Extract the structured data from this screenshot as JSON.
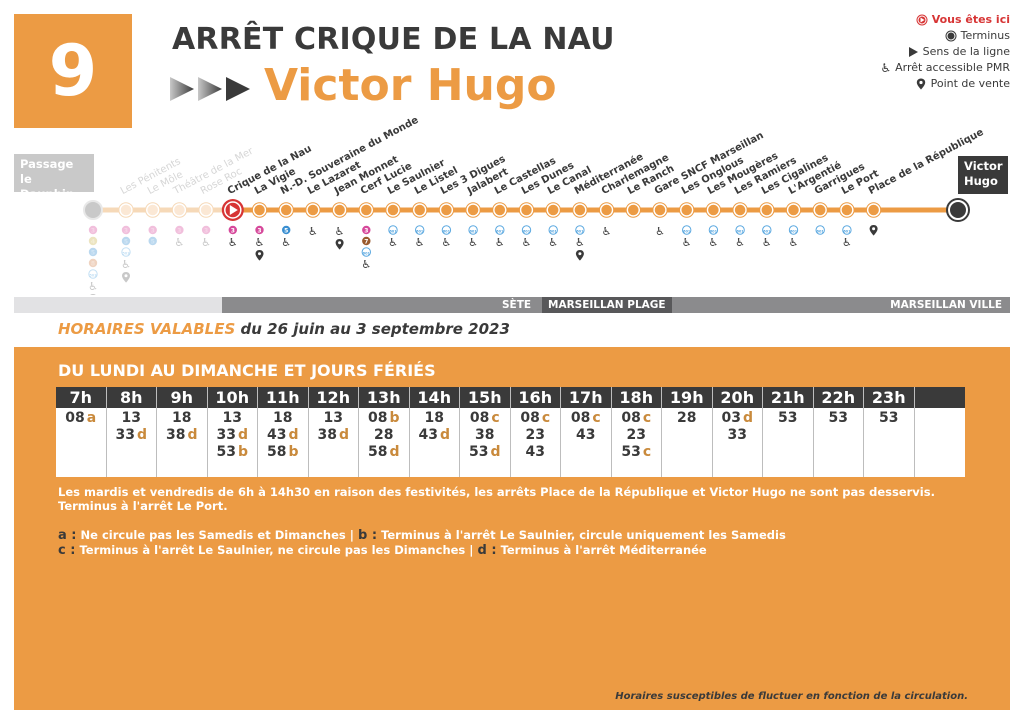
{
  "header": {
    "line_number": "9",
    "stop_title": "ARRÊT CRIQUE DE LA NAU",
    "direction": "Victor Hugo"
  },
  "legend": {
    "items": [
      {
        "icon": "you-are-here-icon",
        "label": "Vous êtes ici"
      },
      {
        "icon": "terminus-icon",
        "label": "Terminus"
      },
      {
        "icon": "direction-arrow-icon",
        "label": "Sens de la ligne"
      },
      {
        "icon": "wheelchair-icon",
        "label": "Arrêt accessible PMR"
      },
      {
        "icon": "map-pin-icon",
        "label": "Point de vente"
      }
    ]
  },
  "route": {
    "start_terminal": "Passage le Dauphin",
    "end_terminal": "Victor Hugo",
    "colors": {
      "line": "#ec9b44",
      "past_line": "#f6d9b8",
      "current": "#d73535",
      "terminus": "#3a3a3a"
    },
    "stops": [
      {
        "name": "Les Pénitents",
        "past": true,
        "connections": [
          "3",
          "5",
          "503"
        ],
        "pmr": true,
        "sale": true
      },
      {
        "name": "Le Môle",
        "past": true,
        "connections": [
          "3",
          "5"
        ],
        "pmr": false,
        "sale": false
      },
      {
        "name": "Théâtre de la Mer",
        "past": true,
        "connections": [
          "3"
        ],
        "pmr": true,
        "sale": false
      },
      {
        "name": "Rose Roc",
        "past": true,
        "connections": [
          "3"
        ],
        "pmr": true,
        "sale": false
      },
      {
        "name": "Crique de la Nau",
        "current": true,
        "connections": [
          "3"
        ],
        "pmr": true,
        "sale": false
      },
      {
        "name": "La Vigie",
        "connections": [
          "3"
        ],
        "pmr": true,
        "sale": true
      },
      {
        "name": "N.-D. Souveraine du Monde",
        "connections": [
          "5"
        ],
        "pmr": true,
        "sale": false
      },
      {
        "name": "Le Lazaret",
        "connections": [],
        "pmr": true,
        "sale": false
      },
      {
        "name": "Jean Monnet",
        "connections": [],
        "pmr": true,
        "sale": true
      },
      {
        "name": "Cerf Lucie",
        "connections": [
          "3",
          "7",
          "601"
        ],
        "pmr": true,
        "sale": false
      },
      {
        "name": "Le Saulnier",
        "connections": [
          "601"
        ],
        "pmr": true,
        "sale": false
      },
      {
        "name": "Le Listel",
        "connections": [
          "601"
        ],
        "pmr": true,
        "sale": false
      },
      {
        "name": "Les 3 Digues",
        "connections": [
          "601"
        ],
        "pmr": true,
        "sale": false
      },
      {
        "name": "Jalabert",
        "connections": [
          "601"
        ],
        "pmr": true,
        "sale": false
      },
      {
        "name": "Le Castellas",
        "connections": [
          "601"
        ],
        "pmr": true,
        "sale": false
      },
      {
        "name": "Les Dunes",
        "connections": [
          "601"
        ],
        "pmr": true,
        "sale": false
      },
      {
        "name": "Le Canal",
        "connections": [
          "601"
        ],
        "pmr": true,
        "sale": false
      },
      {
        "name": "Méditerranée",
        "connections": [
          "601"
        ],
        "pmr": true,
        "sale": true
      },
      {
        "name": "Charlemagne",
        "connections": [],
        "pmr": true,
        "sale": false
      },
      {
        "name": "Le Ranch",
        "connections": [],
        "pmr": false,
        "sale": false
      },
      {
        "name": "Gare SNCF Marseillan",
        "connections": [],
        "pmr": true,
        "sale": false
      },
      {
        "name": "Les Onglous",
        "connections": [
          "601"
        ],
        "pmr": true,
        "sale": false
      },
      {
        "name": "Les Mougères",
        "connections": [
          "601"
        ],
        "pmr": true,
        "sale": false
      },
      {
        "name": "Les Ramiers",
        "connections": [
          "601"
        ],
        "pmr": true,
        "sale": false
      },
      {
        "name": "Les Cigalines",
        "connections": [
          "601"
        ],
        "pmr": true,
        "sale": false
      },
      {
        "name": "L'Argentié",
        "connections": [
          "601"
        ],
        "pmr": true,
        "sale": false
      },
      {
        "name": "Garrigues",
        "connections": [
          "601"
        ],
        "pmr": false,
        "sale": false
      },
      {
        "name": "Le Port",
        "connections": [
          "601"
        ],
        "pmr": true,
        "sale": false
      },
      {
        "name": "Place de la République",
        "connections": [],
        "pmr": false,
        "sale": true
      }
    ],
    "start_connections": [
      "3",
      "4",
      "5",
      "8",
      "503"
    ]
  },
  "zones": {
    "sete": "SÈTE",
    "plage": "MARSEILLAN PLAGE",
    "ville": "MARSEILLAN VILLE"
  },
  "validity": {
    "highlight": "HORAIRES VALABLES",
    "period": "du 26 juin au 3 septembre 2023"
  },
  "timetable": {
    "title": "DU LUNDI AU DIMANCHE ET JOURS FÉRIÉS",
    "columns": [
      {
        "hour": "7h",
        "departures": [
          {
            "min": "08",
            "mark": "a"
          }
        ]
      },
      {
        "hour": "8h",
        "departures": [
          {
            "min": "13",
            "mark": ""
          },
          {
            "min": "33",
            "mark": "d"
          }
        ]
      },
      {
        "hour": "9h",
        "departures": [
          {
            "min": "18",
            "mark": ""
          },
          {
            "min": "38",
            "mark": "d"
          }
        ]
      },
      {
        "hour": "10h",
        "departures": [
          {
            "min": "13",
            "mark": ""
          },
          {
            "min": "33",
            "mark": "d"
          },
          {
            "min": "53",
            "mark": "b"
          }
        ]
      },
      {
        "hour": "11h",
        "departures": [
          {
            "min": "18",
            "mark": ""
          },
          {
            "min": "43",
            "mark": "d"
          },
          {
            "min": "58",
            "mark": "b"
          }
        ]
      },
      {
        "hour": "12h",
        "departures": [
          {
            "min": "13",
            "mark": ""
          },
          {
            "min": "38",
            "mark": "d"
          }
        ]
      },
      {
        "hour": "13h",
        "departures": [
          {
            "min": "08",
            "mark": "b"
          },
          {
            "min": "28",
            "mark": ""
          },
          {
            "min": "58",
            "mark": "d"
          }
        ]
      },
      {
        "hour": "14h",
        "departures": [
          {
            "min": "18",
            "mark": ""
          },
          {
            "min": "43",
            "mark": "d"
          }
        ]
      },
      {
        "hour": "15h",
        "departures": [
          {
            "min": "08",
            "mark": "c"
          },
          {
            "min": "38",
            "mark": ""
          },
          {
            "min": "53",
            "mark": "d"
          }
        ]
      },
      {
        "hour": "16h",
        "departures": [
          {
            "min": "08",
            "mark": "c"
          },
          {
            "min": "23",
            "mark": ""
          },
          {
            "min": "43",
            "mark": ""
          }
        ]
      },
      {
        "hour": "17h",
        "departures": [
          {
            "min": "08",
            "mark": "c"
          },
          {
            "min": "43",
            "mark": ""
          }
        ]
      },
      {
        "hour": "18h",
        "departures": [
          {
            "min": "08",
            "mark": "c"
          },
          {
            "min": "23",
            "mark": ""
          },
          {
            "min": "53",
            "mark": "c"
          }
        ]
      },
      {
        "hour": "19h",
        "departures": [
          {
            "min": "28",
            "mark": ""
          }
        ]
      },
      {
        "hour": "20h",
        "departures": [
          {
            "min": "03",
            "mark": "d"
          },
          {
            "min": "33",
            "mark": ""
          }
        ]
      },
      {
        "hour": "21h",
        "departures": [
          {
            "min": "53",
            "mark": ""
          }
        ]
      },
      {
        "hour": "22h",
        "departures": [
          {
            "min": "53",
            "mark": ""
          }
        ]
      },
      {
        "hour": "23h",
        "departures": [
          {
            "min": "53",
            "mark": ""
          }
        ]
      },
      {
        "hour": "",
        "departures": []
      }
    ],
    "note": "Les mardis et vendredis de 6h à 14h30 en raison des festivités, les arrêts Place de la République et Victor Hugo ne sont pas desservis. Terminus à l'arrêt Le Port.",
    "footnotes": {
      "a_key": "a :",
      "a": "Ne circule pas les Samedis et Dimanches",
      "b_key": "b :",
      "b": "Terminus à l'arrêt Le Saulnier, circule uniquement les Samedis",
      "c_key": "c :",
      "c": "Terminus à l'arrêt Le Saulnier, ne circule pas les Dimanches",
      "d_key": "d :",
      "d": "Terminus à l'arrêt Méditerranée",
      "separator": "|"
    },
    "disclaimer": "Horaires susceptibles de fluctuer en fonction de la circulation."
  }
}
